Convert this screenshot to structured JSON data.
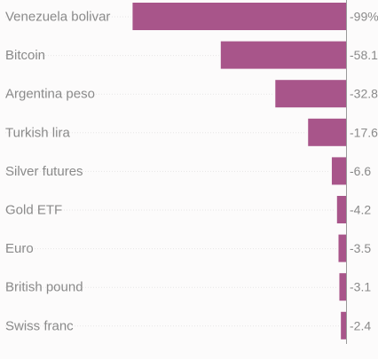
{
  "chart_data": {
    "type": "bar",
    "orientation": "horizontal",
    "categories": [
      "Venezuela bolivar",
      "Bitcoin",
      "Argentina peso",
      "Turkish lira",
      "Silver futures",
      "Gold ETF",
      "Euro",
      "British pound",
      "Swiss franc"
    ],
    "values": [
      -99,
      -58.1,
      -32.8,
      -17.6,
      -6.6,
      -4.2,
      -3.5,
      -3.1,
      -2.4
    ],
    "value_labels": [
      "-99%",
      "-58.1",
      "-32.8",
      "-17.6",
      "-6.6",
      "-4.2",
      "-3.5",
      "-3.1",
      "-2.4"
    ],
    "xlim": [
      -100,
      0
    ],
    "bar_color": "#a8558a",
    "grid": false,
    "legend": "none"
  }
}
